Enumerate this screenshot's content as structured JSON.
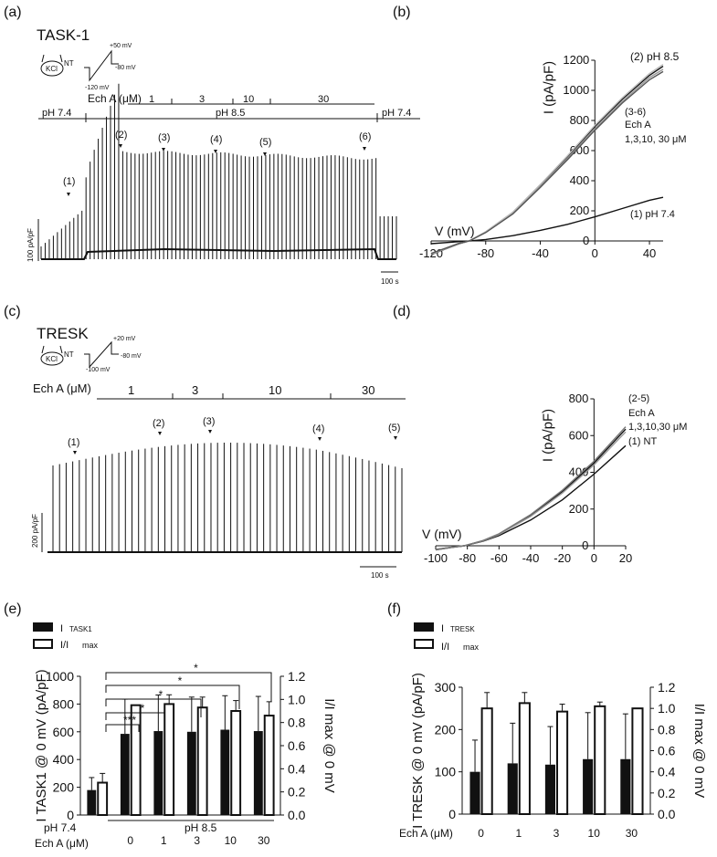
{
  "panels": {
    "a": {
      "letter": "(a)",
      "channel": "TASK-1",
      "protocol": {
        "electrode": "KCl",
        "config": "NT",
        "v_top": "+50 mV",
        "v_hold": "-80 mV",
        "v_start": "-120  mV"
      },
      "drug_label": "Ech A (μM)",
      "concentrations": [
        "1",
        "3",
        "10",
        "30"
      ],
      "ph_labels": [
        "pH 7.4",
        "pH 8.5",
        "pH 7.4"
      ],
      "markers": [
        "(1)",
        "(2)",
        "(3)",
        "(4)",
        "(5)",
        "(6)"
      ],
      "scale_y": "100 pA/pF",
      "scale_x": "100 s"
    },
    "c": {
      "letter": "(c)",
      "channel": "TRESK",
      "protocol": {
        "electrode": "KCl",
        "config": "NT",
        "v_top": "+20 mV",
        "v_hold": "-80 mV",
        "v_start": "-100 mV"
      },
      "drug_label": "Ech A (μM)",
      "concentrations": [
        "1",
        "3",
        "10",
        "30"
      ],
      "markers": [
        "(1)",
        "(2)",
        "(3)",
        "(4)",
        "(5)"
      ],
      "scale_y": "200 pA/pF",
      "scale_x": "100 s"
    },
    "e": {
      "legend_a": "I",
      "legend_a_sub": "TASK1",
      "legend_b": "I/I",
      "legend_b_sub": "max",
      "stars": [
        "***",
        "*",
        "*",
        "*",
        "*"
      ],
      "cat_axis_label": "Ech A (μM)",
      "ph_left": "pH 7.4",
      "ph_right": "pH 8.5"
    },
    "f": {
      "legend_a": "I",
      "legend_a_sub": "TRESK",
      "legend_b": "I/I",
      "legend_b_sub": "max",
      "cat_axis_label": "Ech A (μM)"
    }
  },
  "chart_data": [
    {
      "panel": "(b)",
      "type": "line",
      "xlabel": "V (mV)",
      "ylabel": "I (pA/pF)",
      "xlim": [
        -120,
        50
      ],
      "ylim": [
        0,
        1200
      ],
      "xticks": [
        -120,
        -80,
        -40,
        0,
        40
      ],
      "yticks": [
        0,
        200,
        400,
        600,
        800,
        1000,
        1200
      ],
      "series": [
        {
          "name": "(1) pH 7.4",
          "color": "#111111",
          "x": [
            -120,
            -100,
            -92,
            -80,
            -60,
            -40,
            -20,
            0,
            20,
            40,
            50
          ],
          "y": [
            -18,
            -5,
            0,
            10,
            35,
            70,
            110,
            160,
            215,
            270,
            290
          ]
        },
        {
          "name": "(2) pH 8.5",
          "color": "#111111",
          "x": [
            -120,
            -110,
            -100,
            -92,
            -80,
            -60,
            -40,
            -20,
            0,
            20,
            40,
            50
          ],
          "y": [
            -90,
            -55,
            -20,
            0,
            60,
            190,
            370,
            560,
            760,
            940,
            1100,
            1160
          ]
        },
        {
          "name": "",
          "color": "#999999",
          "x": [
            -120,
            -110,
            -100,
            -92,
            -80,
            -60,
            -40,
            -20,
            0,
            20,
            40,
            50
          ],
          "y": [
            -85,
            -52,
            -18,
            0,
            58,
            185,
            362,
            550,
            745,
            925,
            1085,
            1140
          ]
        },
        {
          "name": "",
          "color": "#bbbbbb",
          "x": [
            -120,
            -110,
            -100,
            -92,
            -80,
            -60,
            -40,
            -20,
            0,
            20,
            40,
            50
          ],
          "y": [
            -88,
            -54,
            -19,
            0,
            61,
            192,
            374,
            566,
            768,
            950,
            1112,
            1172
          ]
        },
        {
          "name": "",
          "color": "#555555",
          "x": [
            -120,
            -110,
            -100,
            -92,
            -80,
            -60,
            -40,
            -20,
            0,
            20,
            40,
            50
          ],
          "y": [
            -83,
            -50,
            -17,
            0,
            56,
            180,
            355,
            540,
            735,
            915,
            1070,
            1125
          ]
        }
      ],
      "annotations": [
        "(2) pH 8.5",
        "(3-6)",
        "Ech A",
        "1,3,10, 30 μM",
        "(1) pH 7.4"
      ]
    },
    {
      "panel": "(d)",
      "type": "line",
      "xlabel": "V (mV)",
      "ylabel": "I (pA/pF)",
      "xlim": [
        -100,
        20
      ],
      "ylim": [
        0,
        800
      ],
      "xticks": [
        -100,
        -80,
        -60,
        -40,
        -20,
        0,
        20
      ],
      "yticks": [
        0,
        200,
        400,
        600,
        800
      ],
      "series": [
        {
          "name": "(1) NT",
          "color": "#111111",
          "x": [
            -100,
            -90,
            -82,
            -70,
            -60,
            -40,
            -20,
            0,
            20
          ],
          "y": [
            -20,
            -8,
            0,
            25,
            55,
            140,
            250,
            390,
            545
          ]
        },
        {
          "name": "(2-5)",
          "color": "#111111",
          "x": [
            -100,
            -90,
            -82,
            -70,
            -60,
            -40,
            -20,
            0,
            20
          ],
          "y": [
            -22,
            -9,
            0,
            28,
            63,
            165,
            295,
            450,
            635
          ]
        },
        {
          "name": "",
          "color": "#999999",
          "x": [
            -100,
            -90,
            -82,
            -70,
            -60,
            -40,
            -20,
            0,
            20
          ],
          "y": [
            -21,
            -8,
            0,
            27,
            61,
            160,
            287,
            440,
            620
          ]
        },
        {
          "name": "",
          "color": "#777777",
          "x": [
            -100,
            -90,
            -82,
            -70,
            -60,
            -40,
            -20,
            0,
            20
          ],
          "y": [
            -23,
            -9,
            0,
            29,
            65,
            170,
            302,
            460,
            648
          ]
        }
      ],
      "annotations": [
        "(2-5)",
        "Ech A",
        "1,3,10,30 μM",
        "(1) NT"
      ]
    },
    {
      "panel": "(e)",
      "type": "bar",
      "categories": [
        "pH 7.4",
        "0",
        "1",
        "3",
        "10",
        "30"
      ],
      "ylabel": "I TASK1 @ 0 mV (pA/pF)",
      "ylabel2": "I/I max @ 0 mV",
      "ylim": [
        0,
        1000
      ],
      "ylim2": [
        0,
        1.2
      ],
      "yticks": [
        0,
        200,
        400,
        600,
        800,
        1000
      ],
      "yticks2": [
        "0.0",
        "0.2",
        "0.4",
        "0.6",
        "0.8",
        "1.0",
        "1.2"
      ],
      "series": [
        {
          "name": "I TASK1",
          "axis": "left",
          "fill": "#111111",
          "values": [
            180,
            585,
            605,
            600,
            615,
            605
          ],
          "errors": [
            90,
            250,
            260,
            250,
            245,
            250
          ]
        },
        {
          "name": "I/I max",
          "axis": "right",
          "fill": "#ffffff",
          "values": [
            0.28,
            0.95,
            0.96,
            0.93,
            0.9,
            0.86
          ],
          "errors": [
            0.08,
            0.0,
            0.08,
            0.09,
            0.09,
            0.12
          ]
        }
      ]
    },
    {
      "panel": "(f)",
      "type": "bar",
      "categories": [
        "0",
        "1",
        "3",
        "10",
        "30"
      ],
      "ylabel": "I TRESK @ 0 mV (pA/pF)",
      "ylabel2": "I/I max @ 0 mV",
      "ylim": [
        0,
        300
      ],
      "ylim2": [
        0,
        1.2
      ],
      "yticks": [
        0,
        100,
        200,
        300
      ],
      "yticks2": [
        "0.0",
        "0.2",
        "0.4",
        "0.6",
        "0.8",
        "1.0",
        "1.2"
      ],
      "series": [
        {
          "name": "I TRESK",
          "axis": "left",
          "fill": "#111111",
          "values": [
            100,
            120,
            117,
            130,
            130
          ],
          "errors": [
            75,
            95,
            90,
            110,
            107
          ]
        },
        {
          "name": "I/I max",
          "axis": "right",
          "fill": "#ffffff",
          "values": [
            1.0,
            1.05,
            0.97,
            1.02,
            1.0
          ],
          "errors": [
            0.15,
            0.1,
            0.07,
            0.04,
            0.0
          ]
        }
      ]
    }
  ]
}
